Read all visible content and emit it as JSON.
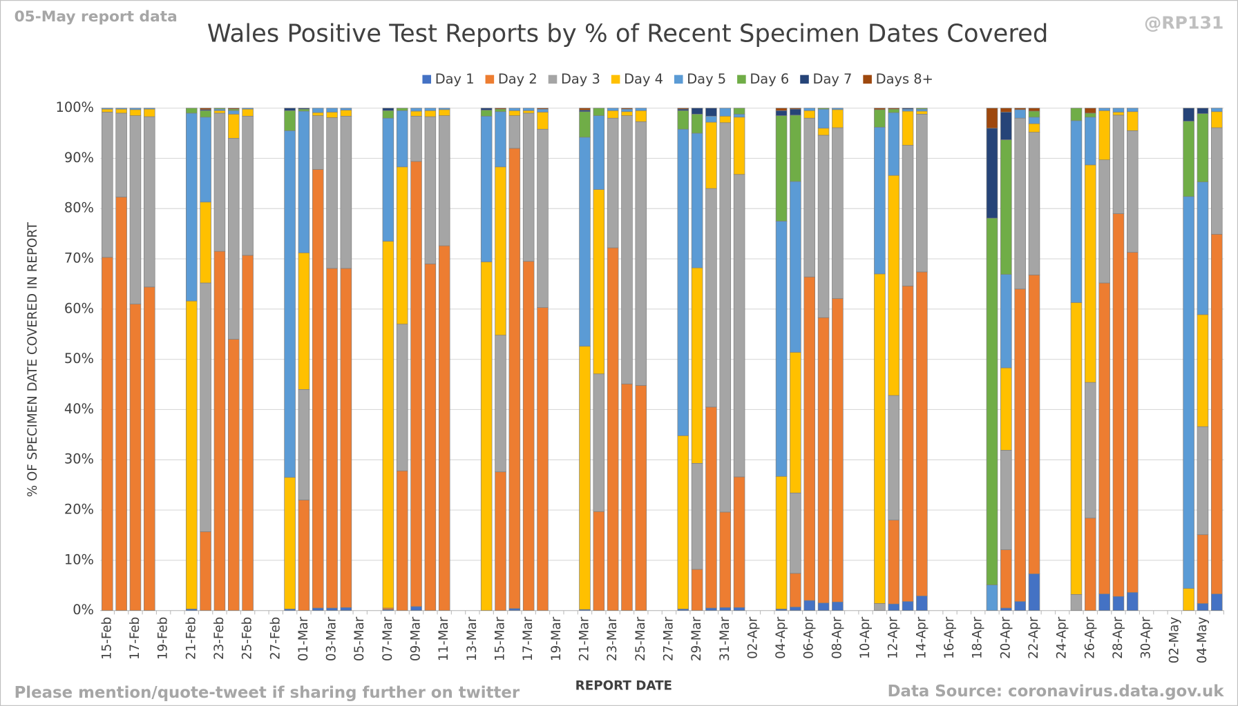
{
  "chart_data": {
    "type": "bar",
    "stacked": true,
    "title": "Wales Positive Test Reports by % of Recent Specimen Dates Covered",
    "corner_left": "05-May report data",
    "corner_right": "@RP131",
    "footer_left": "Please mention/quote-tweet if sharing further on twitter",
    "footer_right": "Data Source: coronavirus.data.gov.uk",
    "x_label": "REPORT DATE",
    "y_label": "% OF SPECIMEN DATE COVERED IN REPORT",
    "legend": "top",
    "grid": true,
    "ylim": [
      0,
      100
    ],
    "yticks": [
      {
        "value": 0,
        "label": "0%"
      },
      {
        "value": 10,
        "label": "10%"
      },
      {
        "value": 20,
        "label": "20%"
      },
      {
        "value": 30,
        "label": "30%"
      },
      {
        "value": 40,
        "label": "40%"
      },
      {
        "value": 50,
        "label": "50%"
      },
      {
        "value": 60,
        "label": "60%"
      },
      {
        "value": 70,
        "label": "70%"
      },
      {
        "value": 80,
        "label": "80%"
      },
      {
        "value": 90,
        "label": "90%"
      },
      {
        "value": 100,
        "label": "100%"
      }
    ],
    "categories": [
      "15-Feb",
      null,
      "17-Feb",
      null,
      "19-Feb",
      null,
      "21-Feb",
      null,
      "23-Feb",
      null,
      "25-Feb",
      null,
      "27-Feb",
      null,
      "01-Mar",
      null,
      "03-Mar",
      null,
      "05-Mar",
      null,
      "07-Mar",
      null,
      "09-Mar",
      null,
      "11-Mar",
      null,
      "13-Mar",
      null,
      "15-Mar",
      null,
      "17-Mar",
      null,
      "19-Mar",
      null,
      "21-Mar",
      null,
      "23-Mar",
      null,
      "25-Mar",
      null,
      "27-Mar",
      null,
      "29-Mar",
      null,
      "31-Mar",
      null,
      "02-Apr",
      null,
      "04-Apr",
      null,
      "06-Apr",
      null,
      "08-Apr",
      null,
      "10-Apr",
      null,
      "12-Apr",
      null,
      "14-Apr",
      null,
      "16-Apr",
      null,
      "18-Apr",
      null,
      "20-Apr",
      null,
      "22-Apr",
      null,
      "24-Apr",
      null,
      "26-Apr",
      null,
      "28-Apr",
      null,
      "30-Apr",
      null,
      "02-May",
      null,
      "04-May",
      null
    ],
    "series": [
      {
        "name": "Day 1",
        "color": "#4472c4",
        "values": [
          0,
          0,
          0,
          0,
          null,
          null,
          0.3,
          0,
          0,
          0,
          0,
          null,
          null,
          0.3,
          0,
          0.5,
          0.5,
          0.6,
          null,
          null,
          0.2,
          0,
          0.8,
          0,
          0,
          null,
          null,
          0,
          0,
          0.4,
          0,
          0,
          null,
          null,
          0.2,
          0,
          0,
          0,
          0,
          null,
          null,
          0.3,
          0,
          0.5,
          0.6,
          0.6,
          null,
          null,
          0.3,
          0.7,
          2,
          1.5,
          1.7,
          null,
          null,
          0,
          1.3,
          1.8,
          2.9,
          null,
          null,
          null,
          null,
          0,
          0.5,
          1.8,
          7.3,
          null,
          null,
          0,
          0,
          3.3,
          2.8,
          3.6,
          null,
          null,
          null,
          0,
          1.4,
          3.3
        ]
      },
      {
        "name": "Day 2",
        "color": "#ed7d31",
        "values": [
          70.3,
          82.3,
          61,
          64.4,
          null,
          null,
          0,
          15.7,
          71.5,
          54,
          70.7,
          null,
          null,
          0,
          22,
          87.3,
          67.6,
          67.5,
          null,
          null,
          0.3,
          27.8,
          88.6,
          69,
          72.6,
          null,
          null,
          0,
          27.6,
          91.6,
          69.5,
          60.3,
          null,
          null,
          0,
          19.7,
          72.2,
          45.1,
          44.8,
          null,
          null,
          0,
          8.2,
          40,
          19,
          26,
          null,
          null,
          0,
          6.7,
          64.4,
          56.8,
          60.4,
          null,
          null,
          0,
          16.7,
          62.8,
          64.5,
          null,
          null,
          null,
          null,
          0,
          11.6,
          62.2,
          59.5,
          null,
          null,
          0,
          18.4,
          61.9,
          76.2,
          67.7,
          null,
          null,
          null,
          0,
          13.7,
          71.6
        ]
      },
      {
        "name": "Day 3",
        "color": "#a5a5a5",
        "values": [
          28.9,
          16.7,
          37.5,
          33.9,
          null,
          null,
          0,
          49.5,
          27.5,
          40,
          27.7,
          null,
          null,
          0,
          22,
          10.7,
          30,
          30.3,
          null,
          null,
          0,
          29.2,
          9,
          29.3,
          25.9,
          null,
          null,
          0,
          27.2,
          6.5,
          29.5,
          35.5,
          null,
          null,
          0,
          27.4,
          25.8,
          53.4,
          52.5,
          null,
          null,
          0,
          21.1,
          43.5,
          77.5,
          60.2,
          null,
          null,
          0,
          16,
          31.6,
          36.3,
          34,
          null,
          null,
          1.4,
          24.8,
          28,
          31.4,
          null,
          null,
          null,
          null,
          0,
          19.8,
          34,
          28.4,
          null,
          null,
          3.2,
          27,
          24.5,
          19.6,
          24.2,
          null,
          null,
          null,
          0,
          21.5,
          21.2
        ]
      },
      {
        "name": "Day 4",
        "color": "#ffc000",
        "values": [
          0.6,
          0.8,
          1.2,
          1.5,
          null,
          null,
          61.3,
          16.1,
          0.5,
          4.8,
          1.4,
          null,
          null,
          26.2,
          27.2,
          0.6,
          1.1,
          1.2,
          null,
          null,
          73,
          31.3,
          1,
          1.2,
          1.2,
          null,
          null,
          69.4,
          33.5,
          1,
          0.5,
          3.4,
          null,
          null,
          52.4,
          36.7,
          1.5,
          0.8,
          2.2,
          null,
          null,
          34.5,
          38.9,
          13.2,
          1.3,
          11.4,
          null,
          null,
          26.4,
          28,
          1.5,
          1.4,
          3.6,
          null,
          null,
          65.6,
          43.8,
          6.8,
          0.6,
          null,
          null,
          null,
          null,
          0,
          16.4,
          0,
          1.7,
          null,
          null,
          58.1,
          43.3,
          9.8,
          0.6,
          3.8,
          null,
          null,
          null,
          4.4,
          22.3,
          3.2
        ]
      },
      {
        "name": "Day 5",
        "color": "#5b9bd5",
        "values": [
          0.2,
          0.2,
          0.3,
          0.2,
          null,
          null,
          37.4,
          16.9,
          0.3,
          0.7,
          0.2,
          null,
          null,
          69,
          28.2,
          0.9,
          0.8,
          0.4,
          null,
          null,
          24.5,
          11.2,
          0.6,
          0.5,
          0.3,
          null,
          null,
          29,
          11,
          0.5,
          0.5,
          0.6,
          null,
          null,
          41.6,
          14.7,
          0.5,
          0.5,
          0.5,
          null,
          null,
          61,
          26.8,
          1.2,
          1.6,
          0.6,
          null,
          null,
          50.8,
          34,
          0.5,
          3.8,
          0.3,
          null,
          null,
          29.2,
          12.5,
          0.4,
          0.4,
          null,
          null,
          null,
          null,
          5.1,
          18.6,
          1.7,
          1.3,
          null,
          null,
          36.2,
          9.5,
          0.5,
          0.8,
          0.7,
          null,
          null,
          null,
          78,
          26.4,
          0.7
        ]
      },
      {
        "name": "Day 6",
        "color": "#70ad47",
        "values": [
          0,
          0,
          0,
          0,
          null,
          null,
          1,
          1.3,
          0.2,
          0.3,
          0,
          null,
          null,
          4,
          0.4,
          0,
          0,
          0,
          null,
          null,
          1.5,
          0.5,
          0,
          0,
          0,
          null,
          null,
          1.2,
          0.5,
          0,
          0,
          0,
          null,
          null,
          5.1,
          1.5,
          0,
          0,
          0,
          null,
          null,
          3.7,
          3.8,
          0,
          0,
          1.2,
          null,
          null,
          21,
          13.2,
          0,
          0.2,
          0,
          null,
          null,
          3.5,
          0.7,
          0,
          0.2,
          null,
          null,
          null,
          null,
          73,
          26.8,
          0,
          1.2,
          null,
          null,
          2.5,
          0.8,
          0,
          0,
          0,
          null,
          null,
          null,
          15,
          13.6,
          0
        ]
      },
      {
        "name": "Day 7",
        "color": "#264478",
        "values": [
          0,
          0,
          0,
          0,
          null,
          null,
          0,
          0.2,
          0,
          0,
          0,
          null,
          null,
          0.5,
          0.2,
          0,
          0,
          0,
          null,
          null,
          0.5,
          0,
          0,
          0,
          0,
          null,
          null,
          0.4,
          0,
          0,
          0,
          0,
          null,
          null,
          0.3,
          0,
          0,
          0,
          0,
          null,
          null,
          0.3,
          1.2,
          1.6,
          0,
          0,
          null,
          null,
          1,
          1.2,
          0,
          0,
          0,
          null,
          null,
          0,
          0,
          0.2,
          0,
          null,
          null,
          null,
          null,
          17.9,
          5.5,
          0,
          0,
          null,
          null,
          0,
          0,
          0,
          0,
          0,
          null,
          null,
          null,
          2.6,
          1.1,
          0
        ]
      },
      {
        "name": "Days 8+",
        "color": "#9e480e",
        "values": [
          0,
          0,
          0,
          0,
          null,
          null,
          0,
          0.3,
          0,
          0.2,
          0,
          null,
          null,
          0,
          0,
          0,
          0,
          0,
          null,
          null,
          0,
          0,
          0,
          0,
          0,
          null,
          null,
          0,
          0.2,
          0,
          0,
          0.2,
          null,
          null,
          0.4,
          0,
          0,
          0.2,
          0,
          null,
          null,
          0.2,
          0,
          0,
          0,
          0,
          null,
          null,
          0.5,
          0.2,
          0,
          0,
          0,
          null,
          null,
          0.3,
          0.2,
          0,
          0,
          null,
          null,
          null,
          null,
          4,
          0.8,
          0.3,
          0.6,
          null,
          null,
          0,
          1,
          0,
          0,
          0,
          null,
          null,
          null,
          0,
          0,
          0
        ]
      }
    ]
  }
}
